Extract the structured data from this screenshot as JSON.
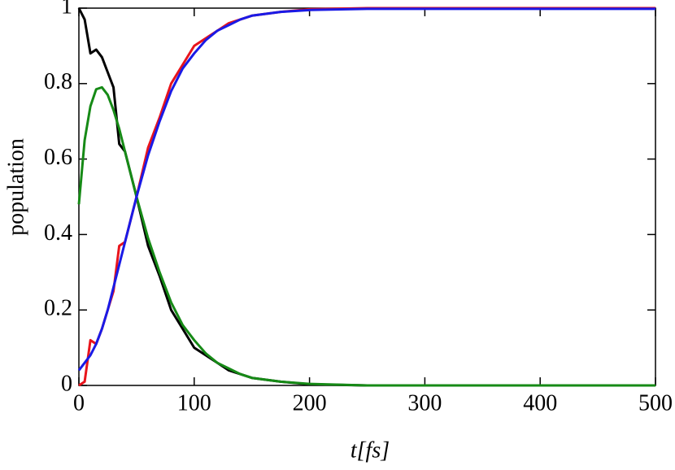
{
  "chart_data": {
    "type": "line",
    "xlabel": "t[fs]",
    "ylabel": "population",
    "x": [
      0,
      5,
      10,
      15,
      20,
      25,
      30,
      35,
      40,
      50,
      60,
      70,
      80,
      90,
      100,
      110,
      120,
      130,
      140,
      150,
      175,
      200,
      250,
      300,
      400,
      500
    ],
    "series": [
      {
        "color": "#000000",
        "values": [
          1,
          0.97,
          0.88,
          0.89,
          0.87,
          0.83,
          0.79,
          0.64,
          0.62,
          0.5,
          0.37,
          0.29,
          0.2,
          0.15,
          0.1,
          0.08,
          0.06,
          0.04,
          0.03,
          0.02,
          0.01,
          0.003,
          0,
          0,
          0,
          0
        ]
      },
      {
        "color": "#e8141c",
        "values": [
          0,
          0.01,
          0.12,
          0.11,
          0.15,
          0.2,
          0.25,
          0.37,
          0.38,
          0.5,
          0.63,
          0.71,
          0.8,
          0.85,
          0.9,
          0.92,
          0.94,
          0.96,
          0.97,
          0.98,
          0.99,
          0.997,
          1,
          1,
          1,
          1
        ]
      },
      {
        "color": "#168a16",
        "values": [
          0.48,
          0.65,
          0.74,
          0.785,
          0.79,
          0.77,
          0.73,
          0.68,
          0.62,
          0.5,
          0.39,
          0.3,
          0.22,
          0.16,
          0.12,
          0.085,
          0.06,
          0.045,
          0.03,
          0.02,
          0.01,
          0.004,
          0,
          0,
          0,
          0
        ]
      },
      {
        "color": "#1a1ae6",
        "values": [
          0.04,
          0.06,
          0.08,
          0.11,
          0.15,
          0.2,
          0.26,
          0.32,
          0.38,
          0.5,
          0.61,
          0.7,
          0.78,
          0.84,
          0.88,
          0.915,
          0.94,
          0.955,
          0.97,
          0.98,
          0.99,
          0.995,
          0.998,
          0.998,
          0.998,
          0.998
        ]
      }
    ],
    "xlim": [
      0,
      500
    ],
    "xticks": [
      0,
      100,
      200,
      300,
      400,
      500
    ],
    "ylim": [
      0,
      1
    ],
    "yticks": [
      0,
      0.2,
      0.4,
      0.6,
      0.8,
      1
    ]
  }
}
